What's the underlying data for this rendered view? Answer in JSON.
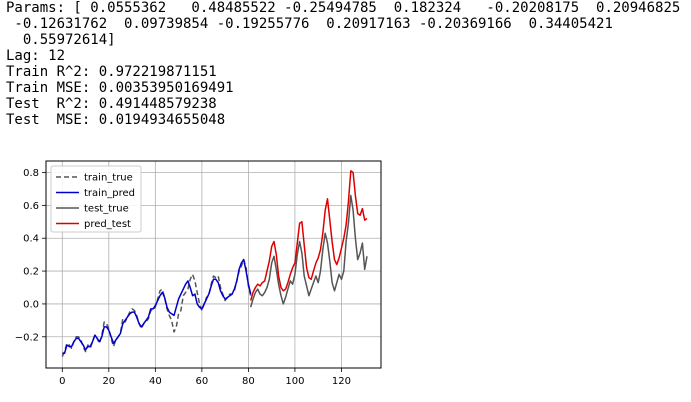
{
  "output": {
    "lines": [
      "Params: [ 0.0555362   0.48485522 -0.25494785  0.182324   -0.20208175  0.20946825",
      " -0.12631762  0.09739854 -0.19255776  0.20917163 -0.20369166  0.34405421",
      "  0.55972614]",
      "Lag: 12",
      "Train R^2: 0.972219871151",
      "Train MSE: 0.00353950169491",
      "Test  R^2: 0.491448579238",
      "Test  MSE: 0.0194934655048"
    ]
  },
  "chart_data": {
    "type": "line",
    "xlim": [
      -7,
      137
    ],
    "ylim": [
      -0.39,
      0.87
    ],
    "xticks": [
      0,
      20,
      40,
      60,
      80,
      100,
      120
    ],
    "yticks": [
      -0.2,
      0.0,
      0.2,
      0.4,
      0.6,
      0.8
    ],
    "tick_labels": {
      "x": [
        "0",
        "20",
        "40",
        "60",
        "80",
        "100",
        "120"
      ],
      "y": [
        "−0.2",
        "0.0",
        "0.2",
        "0.4",
        "0.6",
        "0.8"
      ]
    },
    "grid": true,
    "legend_position": "top-left",
    "series": [
      {
        "name": "train_true",
        "color": "#555555",
        "dash": "dashed",
        "x": [
          0,
          1,
          2,
          3,
          4,
          5,
          6,
          7,
          8,
          9,
          10,
          11,
          12,
          13,
          14,
          15,
          16,
          17,
          18,
          19,
          20,
          21,
          22,
          23,
          24,
          25,
          26,
          27,
          28,
          29,
          30,
          31,
          32,
          33,
          34,
          35,
          36,
          37,
          38,
          39,
          40,
          41,
          42,
          43,
          44,
          45,
          46,
          47,
          48,
          49,
          50,
          51,
          52,
          53,
          54,
          55,
          56,
          57,
          58,
          59,
          60,
          61,
          62,
          63,
          64,
          65,
          66,
          67,
          68,
          69,
          70,
          71,
          72,
          73,
          74,
          75,
          76,
          77,
          78,
          79,
          80,
          81
        ],
        "y": [
          -0.32,
          -0.29,
          -0.24,
          -0.25,
          -0.27,
          -0.23,
          -0.2,
          -0.2,
          -0.22,
          -0.26,
          -0.29,
          -0.25,
          -0.27,
          -0.23,
          -0.19,
          -0.21,
          -0.24,
          -0.19,
          -0.11,
          -0.12,
          -0.15,
          -0.21,
          -0.26,
          -0.22,
          -0.2,
          -0.18,
          -0.09,
          -0.11,
          -0.08,
          -0.05,
          -0.03,
          -0.04,
          -0.07,
          -0.12,
          -0.15,
          -0.12,
          -0.11,
          -0.09,
          -0.04,
          -0.04,
          -0.02,
          0.03,
          0.08,
          0.09,
          0.04,
          -0.03,
          -0.07,
          -0.1,
          -0.17,
          -0.14,
          -0.06,
          -0.04,
          0.05,
          0.07,
          0.09,
          0.15,
          0.18,
          0.14,
          0.07,
          0.0,
          -0.04,
          0.0,
          0.04,
          0.05,
          0.12,
          0.17,
          0.16,
          0.17,
          0.1,
          0.06,
          0.02,
          0.04,
          0.06,
          0.06,
          0.08,
          0.14,
          0.2,
          0.23,
          0.27,
          0.22,
          0.11,
          0.05
        ]
      },
      {
        "name": "train_pred",
        "color": "#0000cc",
        "dash": "solid",
        "x": [
          0,
          1,
          2,
          3,
          4,
          5,
          6,
          7,
          8,
          9,
          10,
          11,
          12,
          13,
          14,
          15,
          16,
          17,
          18,
          19,
          20,
          21,
          22,
          23,
          24,
          25,
          26,
          27,
          28,
          29,
          30,
          31,
          32,
          33,
          34,
          35,
          36,
          37,
          38,
          39,
          40,
          41,
          42,
          43,
          44,
          45,
          46,
          47,
          48,
          49,
          50,
          51,
          52,
          53,
          54,
          55,
          56,
          57,
          58,
          59,
          60,
          61,
          62,
          63,
          64,
          65,
          66,
          67,
          68,
          69,
          70,
          71,
          72,
          73,
          74,
          75,
          76,
          77,
          78,
          79,
          80,
          81
        ],
        "y": [
          -0.3,
          -0.3,
          -0.25,
          -0.26,
          -0.26,
          -0.23,
          -0.21,
          -0.21,
          -0.23,
          -0.25,
          -0.28,
          -0.26,
          -0.26,
          -0.23,
          -0.19,
          -0.21,
          -0.23,
          -0.2,
          -0.14,
          -0.14,
          -0.16,
          -0.2,
          -0.24,
          -0.22,
          -0.2,
          -0.18,
          -0.12,
          -0.1,
          -0.08,
          -0.06,
          -0.05,
          -0.05,
          -0.08,
          -0.12,
          -0.14,
          -0.12,
          -0.1,
          -0.08,
          -0.03,
          -0.03,
          -0.01,
          0.02,
          0.05,
          0.07,
          0.04,
          -0.02,
          -0.05,
          -0.06,
          -0.07,
          -0.02,
          0.03,
          0.06,
          0.09,
          0.12,
          0.14,
          0.1,
          0.05,
          0.06,
          0.0,
          -0.02,
          -0.03,
          0.0,
          0.03,
          0.06,
          0.11,
          0.15,
          0.15,
          0.13,
          0.08,
          0.05,
          0.03,
          0.04,
          0.05,
          0.06,
          0.09,
          0.14,
          0.21,
          0.25,
          0.27,
          0.2,
          0.12,
          0.06
        ]
      },
      {
        "name": "test_true",
        "color": "#555555",
        "dash": "solid",
        "x": [
          81,
          82,
          83,
          84,
          85,
          86,
          87,
          88,
          89,
          90,
          91,
          92,
          93,
          94,
          95,
          96,
          97,
          98,
          99,
          100,
          101,
          102,
          103,
          104,
          105,
          106,
          107,
          108,
          109,
          110,
          111,
          112,
          113,
          114,
          115,
          116,
          117,
          118,
          119,
          120,
          121,
          122,
          123,
          124,
          125,
          126,
          127,
          128,
          129,
          130,
          131
        ],
        "y": [
          -0.02,
          0.03,
          0.07,
          0.09,
          0.06,
          0.05,
          0.07,
          0.1,
          0.15,
          0.25,
          0.29,
          0.21,
          0.12,
          0.05,
          0.0,
          0.04,
          0.09,
          0.14,
          0.12,
          0.18,
          0.3,
          0.38,
          0.31,
          0.17,
          0.11,
          0.05,
          0.09,
          0.13,
          0.17,
          0.13,
          0.2,
          0.33,
          0.43,
          0.37,
          0.26,
          0.13,
          0.08,
          0.13,
          0.18,
          0.15,
          0.2,
          0.38,
          0.49,
          0.66,
          0.57,
          0.4,
          0.27,
          0.31,
          0.37,
          0.21,
          0.29
        ]
      },
      {
        "name": "pred_test",
        "color": "#dd0000",
        "dash": "solid",
        "x": [
          81,
          82,
          83,
          84,
          85,
          86,
          87,
          88,
          89,
          90,
          91,
          92,
          93,
          94,
          95,
          96,
          97,
          98,
          99,
          100,
          101,
          102,
          103,
          104,
          105,
          106,
          107,
          108,
          109,
          110,
          111,
          112,
          113,
          114,
          115,
          116,
          117,
          118,
          119,
          120,
          121,
          122,
          123,
          124,
          125,
          126,
          127,
          128,
          129,
          130,
          131
        ],
        "y": [
          0.02,
          0.07,
          0.1,
          0.12,
          0.11,
          0.13,
          0.14,
          0.2,
          0.26,
          0.35,
          0.38,
          0.3,
          0.17,
          0.1,
          0.08,
          0.09,
          0.13,
          0.18,
          0.22,
          0.25,
          0.37,
          0.49,
          0.5,
          0.36,
          0.22,
          0.16,
          0.15,
          0.2,
          0.25,
          0.28,
          0.33,
          0.43,
          0.57,
          0.64,
          0.51,
          0.38,
          0.27,
          0.24,
          0.28,
          0.34,
          0.4,
          0.48,
          0.62,
          0.81,
          0.8,
          0.66,
          0.55,
          0.54,
          0.58,
          0.51,
          0.52
        ]
      }
    ]
  }
}
